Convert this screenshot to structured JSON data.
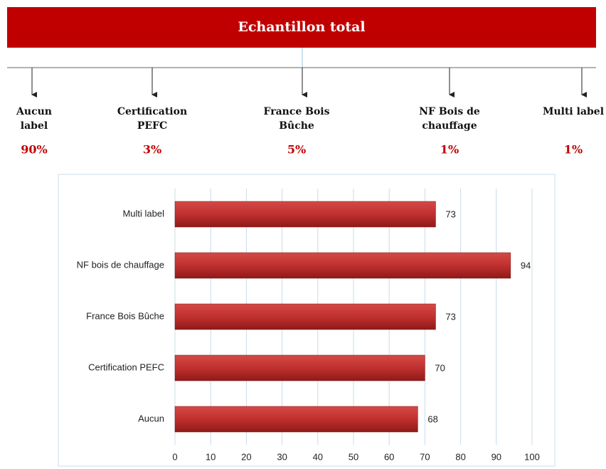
{
  "header": {
    "title": "Echantillon total"
  },
  "nodes": [
    {
      "label": "Aucun label",
      "share": "90%"
    },
    {
      "label": "Certification PEFC",
      "share": "3%"
    },
    {
      "label": "France Bois Bûche",
      "share": "5%"
    },
    {
      "label": "NF Bois de chauffage",
      "share": "1%"
    },
    {
      "label": "Multi label",
      "share": "1%"
    }
  ],
  "chart_data": {
    "type": "bar",
    "orientation": "horizontal",
    "categories": [
      "Aucun",
      "Certification PEFC",
      "France Bois Bûche",
      "NF bois de chauffage",
      "Multi label"
    ],
    "values": [
      68,
      70,
      73,
      94,
      73
    ],
    "color": "#c0302e",
    "xlim": [
      0,
      100
    ],
    "xticks": [
      0,
      10,
      20,
      30,
      40,
      50,
      60,
      70,
      80,
      90,
      100
    ],
    "grid": true
  }
}
